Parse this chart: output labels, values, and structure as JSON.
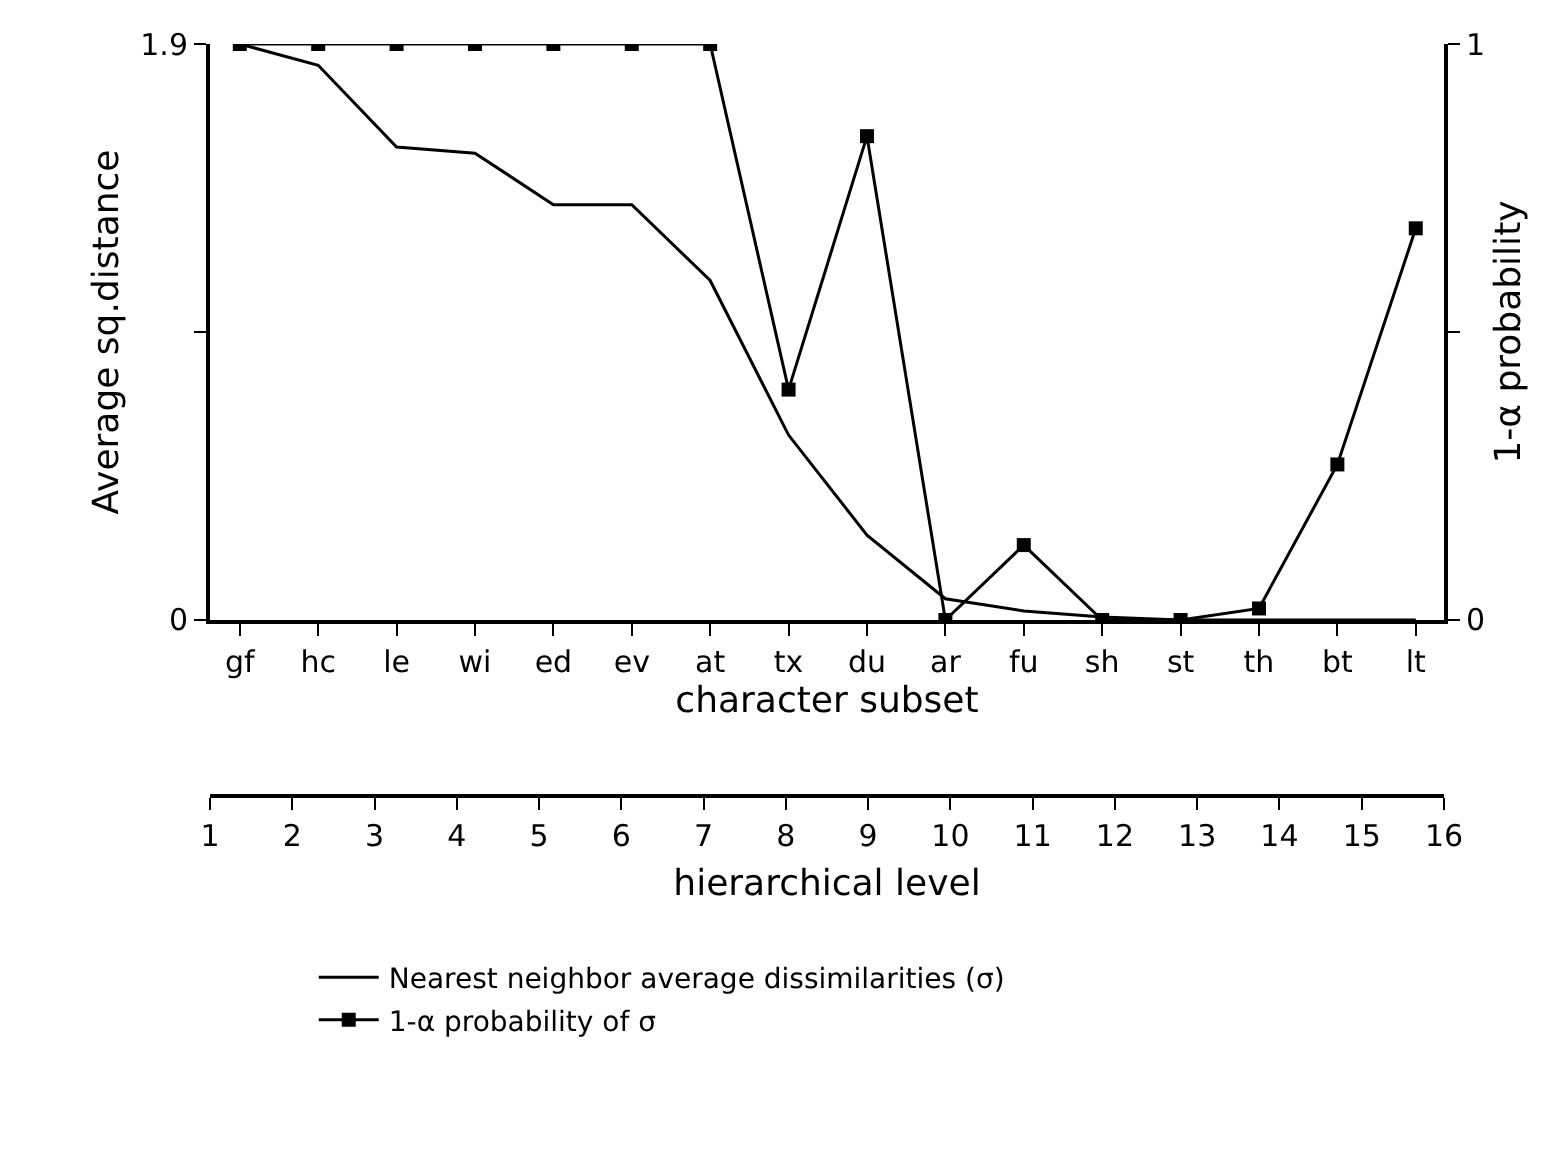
{
  "chart_data": {
    "type": "line",
    "xlabel": "character subset",
    "ylabel": "Average sq.distance",
    "y2label": "1-α probability",
    "x2label": "hierarchical level",
    "categories": [
      "gf",
      "hc",
      "le",
      "wi",
      "ed",
      "ev",
      "at",
      "tx",
      "du",
      "ar",
      "fu",
      "sh",
      "st",
      "th",
      "bt",
      "lt"
    ],
    "ylim": [
      0,
      1.9
    ],
    "yticks": [
      0,
      {
        "value": 0.95,
        "label": null
      },
      1.9
    ],
    "y2lim": [
      0,
      1
    ],
    "y2ticks": [
      0,
      {
        "value": 0.5,
        "label": null
      },
      1
    ],
    "x2lim": [
      1,
      16
    ],
    "x2ticks": [
      1,
      2,
      3,
      4,
      5,
      6,
      7,
      8,
      9,
      10,
      11,
      12,
      13,
      14,
      15,
      16
    ],
    "series": [
      {
        "name": "Nearest neighbor average dissimilarities (σ)",
        "color": "#000000",
        "marker": "none",
        "values": [
          1.9,
          1.83,
          1.56,
          1.54,
          1.37,
          1.37,
          1.12,
          0.61,
          0.28,
          0.07,
          0.03,
          0.01,
          0,
          0,
          0,
          0
        ]
      },
      {
        "name": "1-α probability of σ",
        "color": "#000000",
        "marker": "square",
        "axis": "y2",
        "values": [
          1,
          1,
          1,
          1,
          1,
          1,
          1,
          0.4,
          0.84,
          0,
          0.13,
          0,
          0,
          0.02,
          0.27,
          0.68
        ]
      }
    ],
    "grid": false,
    "legend": "bottom"
  }
}
